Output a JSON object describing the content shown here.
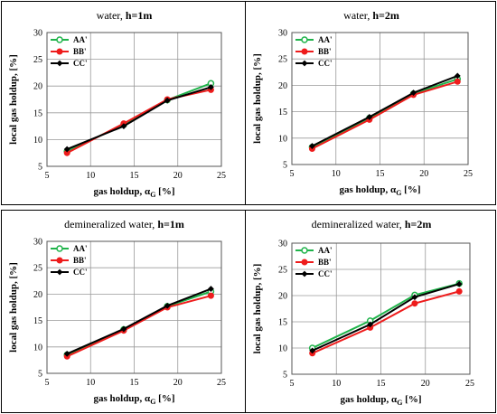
{
  "chart_data": [
    {
      "type": "line",
      "title_prefix": "water, ",
      "title_bold": "h=1m",
      "xlabel": "gas holdup, αG  [%]",
      "ylabel": "local gas holdup, [%]",
      "xlim": [
        5,
        25
      ],
      "ylim": [
        5,
        30
      ],
      "xticks": [
        5,
        10,
        15,
        20,
        25
      ],
      "yticks": [
        5,
        10,
        15,
        20,
        25,
        30
      ],
      "grid": true,
      "legend_position": "top-left",
      "x": [
        7.3,
        13.8,
        18.8,
        23.8
      ],
      "series": [
        {
          "name": "AA'",
          "color": "#1fb34a",
          "marker": "open-circle",
          "values": [
            7.8,
            12.8,
            17.4,
            20.5
          ]
        },
        {
          "name": "BB'",
          "color": "#ee1c1c",
          "marker": "filled-circle",
          "values": [
            7.5,
            13.0,
            17.5,
            19.3
          ]
        },
        {
          "name": "CC'",
          "color": "#000000",
          "marker": "filled-diamond",
          "values": [
            8.2,
            12.5,
            17.3,
            19.8
          ]
        }
      ]
    },
    {
      "type": "line",
      "title_prefix": "water, ",
      "title_bold": "h=2m",
      "xlabel": "gas holdup, αG  [%]",
      "ylabel": "local gas holdup, [%]",
      "xlim": [
        5,
        25
      ],
      "ylim": [
        5,
        30
      ],
      "xticks": [
        5,
        10,
        15,
        20,
        25
      ],
      "yticks": [
        5,
        10,
        15,
        20,
        25,
        30
      ],
      "grid": true,
      "legend_position": "top-left",
      "x": [
        7.3,
        13.8,
        18.8,
        23.8
      ],
      "series": [
        {
          "name": "AA'",
          "color": "#1fb34a",
          "marker": "open-circle",
          "values": [
            8.3,
            13.8,
            18.4,
            21.2
          ]
        },
        {
          "name": "BB'",
          "color": "#ee1c1c",
          "marker": "filled-circle",
          "values": [
            8.0,
            13.5,
            18.2,
            20.7
          ]
        },
        {
          "name": "CC'",
          "color": "#000000",
          "marker": "filled-diamond",
          "values": [
            8.5,
            14.0,
            18.6,
            21.8
          ]
        }
      ]
    },
    {
      "type": "line",
      "title_prefix": "demineralized water, ",
      "title_bold": "h=1m",
      "xlabel": "gas holdup, αG  [%]",
      "ylabel": "local gas holdup, [%]",
      "xlim": [
        5,
        25
      ],
      "ylim": [
        5,
        30
      ],
      "xticks": [
        5,
        10,
        15,
        20,
        25
      ],
      "yticks": [
        5,
        10,
        15,
        20,
        25,
        30
      ],
      "grid": true,
      "legend_position": "top-left",
      "x": [
        7.3,
        13.8,
        18.8,
        23.8
      ],
      "series": [
        {
          "name": "AA'",
          "color": "#1fb34a",
          "marker": "open-circle",
          "values": [
            8.5,
            13.3,
            17.7,
            20.5
          ]
        },
        {
          "name": "BB'",
          "color": "#ee1c1c",
          "marker": "filled-circle",
          "values": [
            8.2,
            13.1,
            17.5,
            19.7
          ]
        },
        {
          "name": "CC'",
          "color": "#000000",
          "marker": "filled-diamond",
          "values": [
            8.7,
            13.4,
            17.8,
            21.0
          ]
        }
      ]
    },
    {
      "type": "line",
      "title_prefix": "demineralized water, ",
      "title_bold": "h=2m",
      "xlabel": "gas holdup, αG  [%]",
      "ylabel": "local gas holdup, [%]",
      "xlim": [
        5,
        25
      ],
      "ylim": [
        5,
        30
      ],
      "xticks": [
        5,
        10,
        15,
        20,
        25
      ],
      "yticks": [
        5,
        10,
        15,
        20,
        25,
        30
      ],
      "grid": true,
      "legend_position": "top-left",
      "x": [
        7.3,
        13.8,
        18.8,
        23.8
      ],
      "series": [
        {
          "name": "AA'",
          "color": "#1fb34a",
          "marker": "open-circle",
          "values": [
            10.0,
            15.2,
            20.1,
            22.3
          ]
        },
        {
          "name": "BB'",
          "color": "#ee1c1c",
          "marker": "filled-circle",
          "values": [
            9.0,
            13.9,
            18.5,
            20.8
          ]
        },
        {
          "name": "CC'",
          "color": "#000000",
          "marker": "filled-diamond",
          "values": [
            9.5,
            14.5,
            19.7,
            22.2
          ]
        }
      ]
    }
  ]
}
